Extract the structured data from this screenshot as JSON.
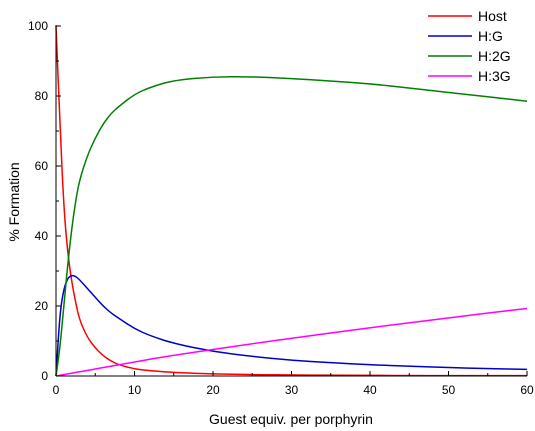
{
  "chart_data": {
    "type": "line",
    "title": "",
    "xlabel": "Guest equiv. per porphyrin",
    "ylabel": "% Formation",
    "xlim": [
      0,
      60
    ],
    "ylim": [
      0,
      100
    ],
    "x_ticks": [
      0,
      10,
      20,
      30,
      40,
      50,
      60
    ],
    "y_ticks": [
      0,
      20,
      40,
      60,
      80,
      100
    ],
    "grid": false,
    "legend_position": "top-right",
    "x": [
      0,
      0.5,
      1,
      1.5,
      2,
      2.5,
      3,
      4,
      5,
      6,
      7,
      8,
      10,
      12,
      15,
      20,
      25,
      30,
      35,
      40,
      45,
      50,
      55,
      60
    ],
    "series": [
      {
        "name": "Host",
        "color": "#ff0000",
        "values": [
          100,
          72,
          48,
          35,
          27,
          21,
          16,
          11,
          8,
          5.8,
          4.3,
          3.2,
          2,
          1.5,
          1,
          0.6,
          0.4,
          0.3,
          0.2,
          0.2,
          0.1,
          0.1,
          0.1,
          0.1
        ]
      },
      {
        "name": "H:G",
        "color": "#0000cc",
        "values": [
          0,
          18,
          25,
          28,
          28.8,
          28.5,
          27.5,
          25,
          22.5,
          20,
          18,
          16.5,
          13.5,
          11.5,
          9.3,
          7,
          5.6,
          4.5,
          3.8,
          3.2,
          2.8,
          2.4,
          2.1,
          1.9
        ]
      },
      {
        "name": "H:2G",
        "color": "#008000",
        "values": [
          0,
          8,
          20,
          32,
          42,
          50,
          56,
          63,
          68,
          72,
          75,
          77,
          80.5,
          82.5,
          84.5,
          85.5,
          85.5,
          85,
          84.3,
          83.5,
          82.3,
          81,
          79.8,
          78.5
        ]
      },
      {
        "name": "H:3G",
        "color": "#ff00ff",
        "values": [
          0,
          0.2,
          0.4,
          0.6,
          0.8,
          1,
          1.2,
          1.6,
          2,
          2.4,
          2.8,
          3.2,
          4,
          4.8,
          5.9,
          7.6,
          9.2,
          10.8,
          12.3,
          13.8,
          15.2,
          16.6,
          18,
          19.3
        ]
      }
    ]
  }
}
